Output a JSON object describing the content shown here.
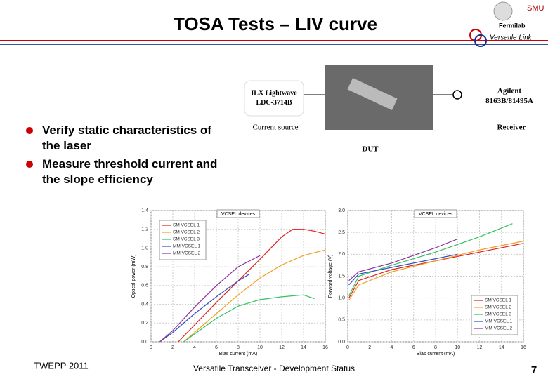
{
  "slide": {
    "title": "TOSA Tests – LIV curve",
    "logos": [
      "SMU",
      "Fermilab",
      "Versatile Link"
    ],
    "bullets": [
      "Verify static characteristics of the laser",
      "Measure threshold current and the slope efficiency"
    ],
    "diagram": {
      "source_name": "ILX Lightwave LDC-3714B",
      "source_role": "Current source",
      "receiver_name": "Agilent 8163B/81495A",
      "receiver_role": "Receiver",
      "dut": "DUT"
    },
    "footer": {
      "left": "TWEPP 2011",
      "center": "Versatile Transceiver - Development Status",
      "page": "7"
    }
  },
  "chart_data": [
    {
      "type": "line",
      "xlabel": "Bias current (mA)",
      "ylabel": "Optical power (mW)",
      "legend_title": "VCSEL devices",
      "legend": "upper left",
      "xlim": [
        0,
        16
      ],
      "xticks": [
        0,
        2,
        4,
        6,
        8,
        10,
        12,
        14,
        16
      ],
      "ylim": [
        0,
        1.4
      ],
      "yticks": [
        {
          "value": 0,
          "label": "0.0"
        },
        {
          "value": 0.2,
          "label": "0.2"
        },
        {
          "value": 0.4,
          "label": "0.4"
        },
        {
          "value": 0.6,
          "label": "0.6"
        },
        {
          "value": 0.8,
          "label": "0.8"
        },
        {
          "value": 1.0,
          "label": "1.0"
        },
        {
          "value": 1.2,
          "label": "1.2"
        },
        {
          "value": 1.4,
          "label": "1.4"
        }
      ],
      "grid": true,
      "series": [
        {
          "name": "SM VCSEL 1",
          "color": "#e02020",
          "x": [
            2.5,
            4,
            6,
            8,
            10,
            11,
            12,
            13,
            14,
            15,
            16
          ],
          "values": [
            0,
            0.18,
            0.42,
            0.65,
            0.88,
            1.0,
            1.12,
            1.2,
            1.2,
            1.18,
            1.15
          ]
        },
        {
          "name": "SM VCSEL 2",
          "color": "#f0a020",
          "x": [
            3,
            6,
            8,
            10,
            12,
            14,
            16
          ],
          "values": [
            0,
            0.3,
            0.5,
            0.68,
            0.82,
            0.92,
            0.98
          ]
        },
        {
          "name": "SM VCSEL 3",
          "color": "#30c060",
          "x": [
            3,
            6,
            8,
            10,
            12,
            14,
            15
          ],
          "values": [
            0,
            0.25,
            0.38,
            0.45,
            0.48,
            0.5,
            0.46
          ]
        },
        {
          "name": "MM VCSEL 1",
          "color": "#3050c0",
          "x": [
            0.8,
            2,
            4,
            6,
            8,
            9
          ],
          "values": [
            0,
            0.1,
            0.3,
            0.48,
            0.65,
            0.72
          ]
        },
        {
          "name": "MM VCSEL 2",
          "color": "#9030a0",
          "x": [
            0.8,
            2,
            4,
            6,
            8,
            10
          ],
          "values": [
            0,
            0.12,
            0.37,
            0.6,
            0.8,
            0.92
          ]
        }
      ]
    },
    {
      "type": "line",
      "xlabel": "Bias current (mA)",
      "ylabel": "Forward voltage (V)",
      "legend_title": "VCSEL devices",
      "legend": "lower right",
      "xlim": [
        0,
        16
      ],
      "xticks": [
        0,
        2,
        4,
        6,
        8,
        10,
        12,
        14,
        16
      ],
      "ylim": [
        0,
        3.0
      ],
      "yticks": [
        {
          "value": 0,
          "label": "0.0"
        },
        {
          "value": 0.5,
          "label": "0.5"
        },
        {
          "value": 1.0,
          "label": "1.0"
        },
        {
          "value": 1.5,
          "label": "1.5"
        },
        {
          "value": 2.0,
          "label": "2.0"
        },
        {
          "value": 2.5,
          "label": "2.5"
        },
        {
          "value": 3.0,
          "label": "3.0"
        }
      ],
      "grid": true,
      "series": [
        {
          "name": "SM VCSEL 1",
          "color": "#e02020",
          "x": [
            0.1,
            1,
            4,
            8,
            12,
            16
          ],
          "values": [
            1.0,
            1.4,
            1.65,
            1.85,
            2.05,
            2.25
          ]
        },
        {
          "name": "SM VCSEL 2",
          "color": "#f0a020",
          "x": [
            0.1,
            1,
            4,
            8,
            12,
            16
          ],
          "values": [
            0.95,
            1.3,
            1.6,
            1.85,
            2.1,
            2.3
          ]
        },
        {
          "name": "SM VCSEL 3",
          "color": "#30c060",
          "x": [
            0.1,
            1,
            4,
            8,
            12,
            15
          ],
          "values": [
            1.05,
            1.5,
            1.75,
            2.05,
            2.4,
            2.7
          ]
        },
        {
          "name": "MM VCSEL 1",
          "color": "#3050c0",
          "x": [
            0.1,
            1,
            4,
            8,
            10
          ],
          "values": [
            1.3,
            1.55,
            1.7,
            1.9,
            2.0
          ]
        },
        {
          "name": "MM VCSEL 2",
          "color": "#9030a0",
          "x": [
            0.1,
            1,
            4,
            8,
            10
          ],
          "values": [
            1.4,
            1.6,
            1.8,
            2.15,
            2.35
          ]
        }
      ]
    }
  ]
}
